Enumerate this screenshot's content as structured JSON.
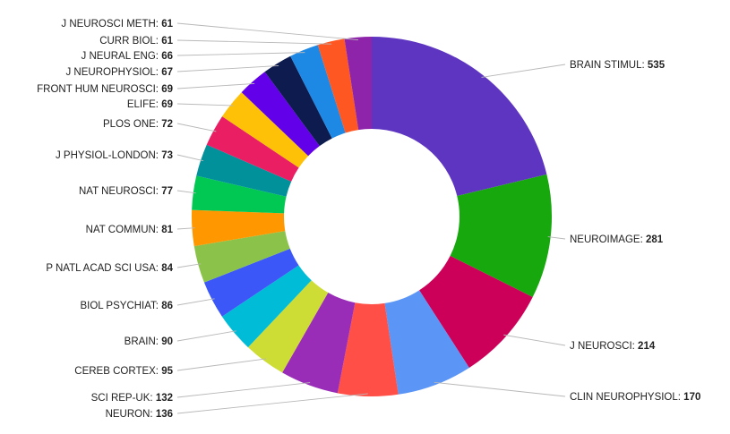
{
  "chart_data": {
    "type": "pie",
    "variant": "donut",
    "title": "",
    "categories": [
      "BRAIN STIMUL",
      "NEUROIMAGE",
      "J NEUROSCI",
      "CLIN NEUROPHYSIOL",
      "NEURON",
      "SCI REP-UK",
      "CEREB CORTEX",
      "BRAIN",
      "BIOL PSYCHIAT",
      "P NATL ACAD SCI USA",
      "NAT COMMUN",
      "NAT NEUROSCI",
      "J PHYSIOL-LONDON",
      "PLOS ONE",
      "ELIFE",
      "FRONT HUM NEUROSCI",
      "J NEUROPHYSIOL",
      "J NEURAL ENG",
      "CURR BIOL",
      "J NEUROSCI METH"
    ],
    "values": [
      535,
      281,
      214,
      170,
      136,
      132,
      95,
      90,
      86,
      84,
      81,
      77,
      73,
      72,
      69,
      69,
      67,
      66,
      61,
      61
    ],
    "colors": [
      "#5e35c1",
      "#16a80c",
      "#cc0058",
      "#5b95f5",
      "#ff4f46",
      "#9a2db8",
      "#cddd36",
      "#00bcd6",
      "#3b57f7",
      "#8bc34a",
      "#ff9800",
      "#00c853",
      "#00919b",
      "#e91e63",
      "#ffc107",
      "#6200ea",
      "#0d1b4f",
      "#1e88e5",
      "#ff5722",
      "#8e24aa"
    ],
    "label_separator": ": ",
    "legend": "none"
  }
}
